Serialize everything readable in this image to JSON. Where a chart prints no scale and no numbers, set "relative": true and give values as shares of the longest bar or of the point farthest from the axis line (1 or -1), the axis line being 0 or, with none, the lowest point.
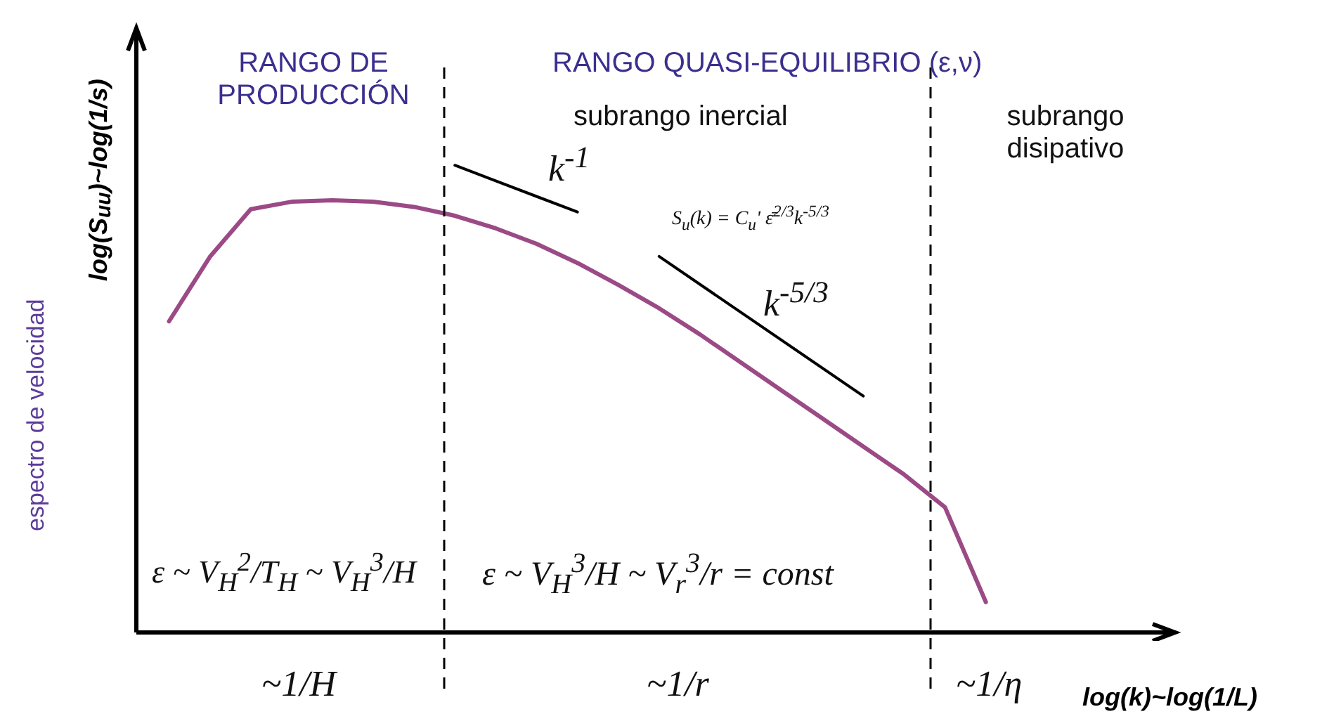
{
  "chart_data": {
    "type": "line",
    "relative": true,
    "xlabel": "log(k)~log(1/L)",
    "ylabel": "log(S$_{uu}$)~log(1/s)",
    "categories": [
      null,
      null,
      null,
      null,
      null,
      null,
      null,
      null,
      null,
      null,
      null,
      null,
      null,
      null,
      null,
      null,
      null,
      null,
      null,
      null,
      null
    ],
    "series": [
      {
        "color": "#9b4a86",
        "values": [
          0.666,
          0.804,
          0.906,
          0.922,
          0.925,
          0.922,
          0.911,
          0.892,
          0.865,
          0.832,
          0.791,
          0.744,
          0.694,
          0.638,
          0.578,
          0.518,
          0.458,
          0.398,
          0.338,
          0.268,
          0.065
        ]
      },
      {
        "color": "#000000",
        "values": [
          null,
          null,
          null,
          null,
          null,
          null,
          null,
          1.0,
          null,
          null,
          0.9,
          null,
          null,
          null,
          null,
          null,
          null,
          null,
          null,
          null,
          null
        ]
      },
      {
        "color": "#000000",
        "values": [
          null,
          null,
          null,
          null,
          null,
          null,
          null,
          null,
          null,
          null,
          null,
          null,
          0.805,
          null,
          null,
          null,
          null,
          0.506,
          null,
          null,
          null
        ]
      }
    ],
    "annotations": [
      "RANGO DE PRODUCCIÓN",
      "RANGO QUASI-EQUILIBRIO (ε,ν)",
      "subrango inercial",
      "subrango disipativo",
      "k$^{-1}$",
      "S$_{u}$(k) = C$_{u}$' ε̄$^{2/3}$k$^{-5/3}$",
      "k$^{-5/3}$",
      "ε ~ V$_{H}$$^{2}$/T$_{H}$ ~ V$_{H}$$^{3}$/H",
      "ε ~ V$_{H}$$^{3}$/H ~ V$_{r}$$^{3}$/r = const",
      "~1/H",
      "~1/r",
      "~1/η",
      "espectro de velocidad"
    ],
    "legend": false,
    "grid": false,
    "marker": "none",
    "line_style": "solid"
  }
}
